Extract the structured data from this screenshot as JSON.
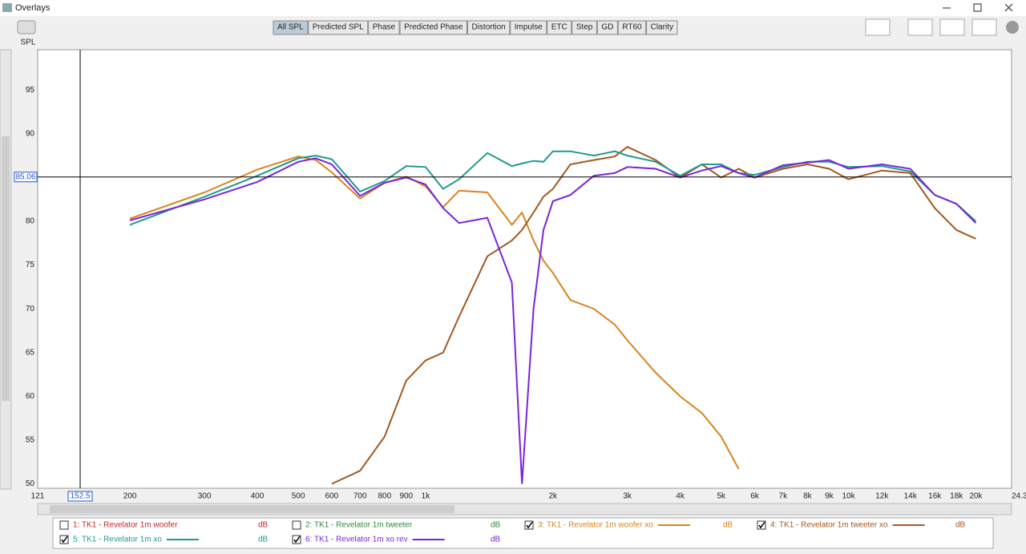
{
  "window_title": "Overlays",
  "tabs": {
    "items": [
      "All SPL",
      "Predicted SPL",
      "Phase",
      "Predicted Phase",
      "Distortion",
      "Impulse",
      "ETC",
      "Step",
      "GD",
      "RT60",
      "Clarity"
    ],
    "active": 0
  },
  "chart_data": {
    "type": "line",
    "y_label": "SPL",
    "log_x": true,
    "grid": true,
    "xlim": [
      121,
      24300
    ],
    "ylim": [
      49.5,
      99.6
    ],
    "xticks": [
      121,
      200,
      300,
      400,
      500,
      600,
      700,
      800,
      900,
      {
        "value": 1000,
        "label": "1k"
      },
      {
        "value": 2000,
        "label": "2k"
      },
      {
        "value": 3000,
        "label": "3k"
      },
      {
        "value": 4000,
        "label": "4k"
      },
      {
        "value": 5000,
        "label": "5k"
      },
      {
        "value": 6000,
        "label": "6k"
      },
      {
        "value": 7000,
        "label": "7k"
      },
      {
        "value": 8000,
        "label": "8k"
      },
      {
        "value": 9000,
        "label": "9k"
      },
      {
        "value": 10000,
        "label": "10k"
      },
      {
        "value": 12000,
        "label": "12k"
      },
      {
        "value": 14000,
        "label": "14k"
      },
      {
        "value": 16000,
        "label": "16k"
      },
      {
        "value": 18000,
        "label": "18k"
      },
      {
        "value": 20000,
        "label": "20k"
      },
      {
        "value": 24300,
        "label": "24.3kHz"
      }
    ],
    "yticks": [
      50,
      55,
      60,
      65,
      70,
      75,
      80,
      85,
      90,
      95
    ],
    "cursor": {
      "x": 152.5,
      "y": 85.06
    },
    "x": [
      200,
      300,
      400,
      500,
      550,
      600,
      700,
      800,
      900,
      1000,
      1100,
      1200,
      1400,
      1600,
      1690,
      1800,
      1900,
      2000,
      2200,
      2500,
      2800,
      3000,
      3500,
      4000,
      4500,
      5000,
      5500,
      6000,
      7000,
      8000,
      9000,
      10000,
      12000,
      14000,
      16000,
      18000,
      20000
    ],
    "series": [
      {
        "name": "1: TK1 - Revelator 1m woofer",
        "color": "#c0282c",
        "unit": "dB",
        "checked": false
      },
      {
        "name": "2: TK1 - Revelator 1m tweeter",
        "color": "#2e8b3e",
        "unit": "dB",
        "checked": false
      },
      {
        "name": "3: TK1 - Revelator 1m woofer xo",
        "color": "#d9841f",
        "unit": "dB",
        "checked": true,
        "values": [
          80.3,
          83.3,
          85.9,
          87.4,
          87,
          85.6,
          82.6,
          84.4,
          85.1,
          84,
          81.6,
          83.5,
          83.3,
          79.6,
          81,
          77.8,
          75.5,
          74.1,
          71,
          70,
          68.2,
          66.4,
          62.7,
          60,
          58.1,
          55.4,
          51.7,
          null,
          null,
          null,
          null,
          null,
          null,
          null,
          null,
          null,
          null
        ]
      },
      {
        "name": "4: TK1 - Revelator 1m tweeter xo",
        "color": "#a3581e",
        "unit": "dB",
        "checked": true,
        "values": [
          null,
          null,
          null,
          null,
          null,
          50,
          51.5,
          55.4,
          61.8,
          64.1,
          65,
          69.1,
          76,
          77.8,
          79,
          81,
          82.8,
          83.7,
          86.5,
          87,
          87.4,
          88.5,
          87,
          85,
          86.5,
          85,
          86,
          85,
          86,
          86.5,
          86,
          84.8,
          85.8,
          85.5,
          81.5,
          79,
          78
        ]
      },
      {
        "name": "5: TK1 - Revelator 1m xo",
        "color": "#1f9a8e",
        "unit": "dB",
        "checked": true,
        "values": [
          79.6,
          82.8,
          85.2,
          87.2,
          87.5,
          87.1,
          83.4,
          84.6,
          86.3,
          86.2,
          83.7,
          84.8,
          87.8,
          86.3,
          86.6,
          86.9,
          86.8,
          88,
          88,
          87.5,
          88,
          87.5,
          86.8,
          85.2,
          86.5,
          86.5,
          85.5,
          85.3,
          86.2,
          86.8,
          86.8,
          86.2,
          86.3,
          85.7,
          83,
          82,
          80
        ]
      },
      {
        "name": "6: TK1 - Revelator 1m xo rev",
        "color": "#7a25d8",
        "unit": "dB",
        "checked": true,
        "values": [
          80.1,
          82.5,
          84.5,
          86.8,
          87.2,
          86.5,
          82.9,
          84.4,
          85,
          84.2,
          81.5,
          79.8,
          80.4,
          73,
          50,
          70,
          79,
          82.3,
          83,
          85.2,
          85.5,
          86.2,
          86,
          85,
          85.8,
          86.3,
          85.5,
          85,
          86.4,
          86.7,
          87,
          86,
          86.5,
          86,
          83,
          82,
          79.8
        ]
      }
    ]
  }
}
